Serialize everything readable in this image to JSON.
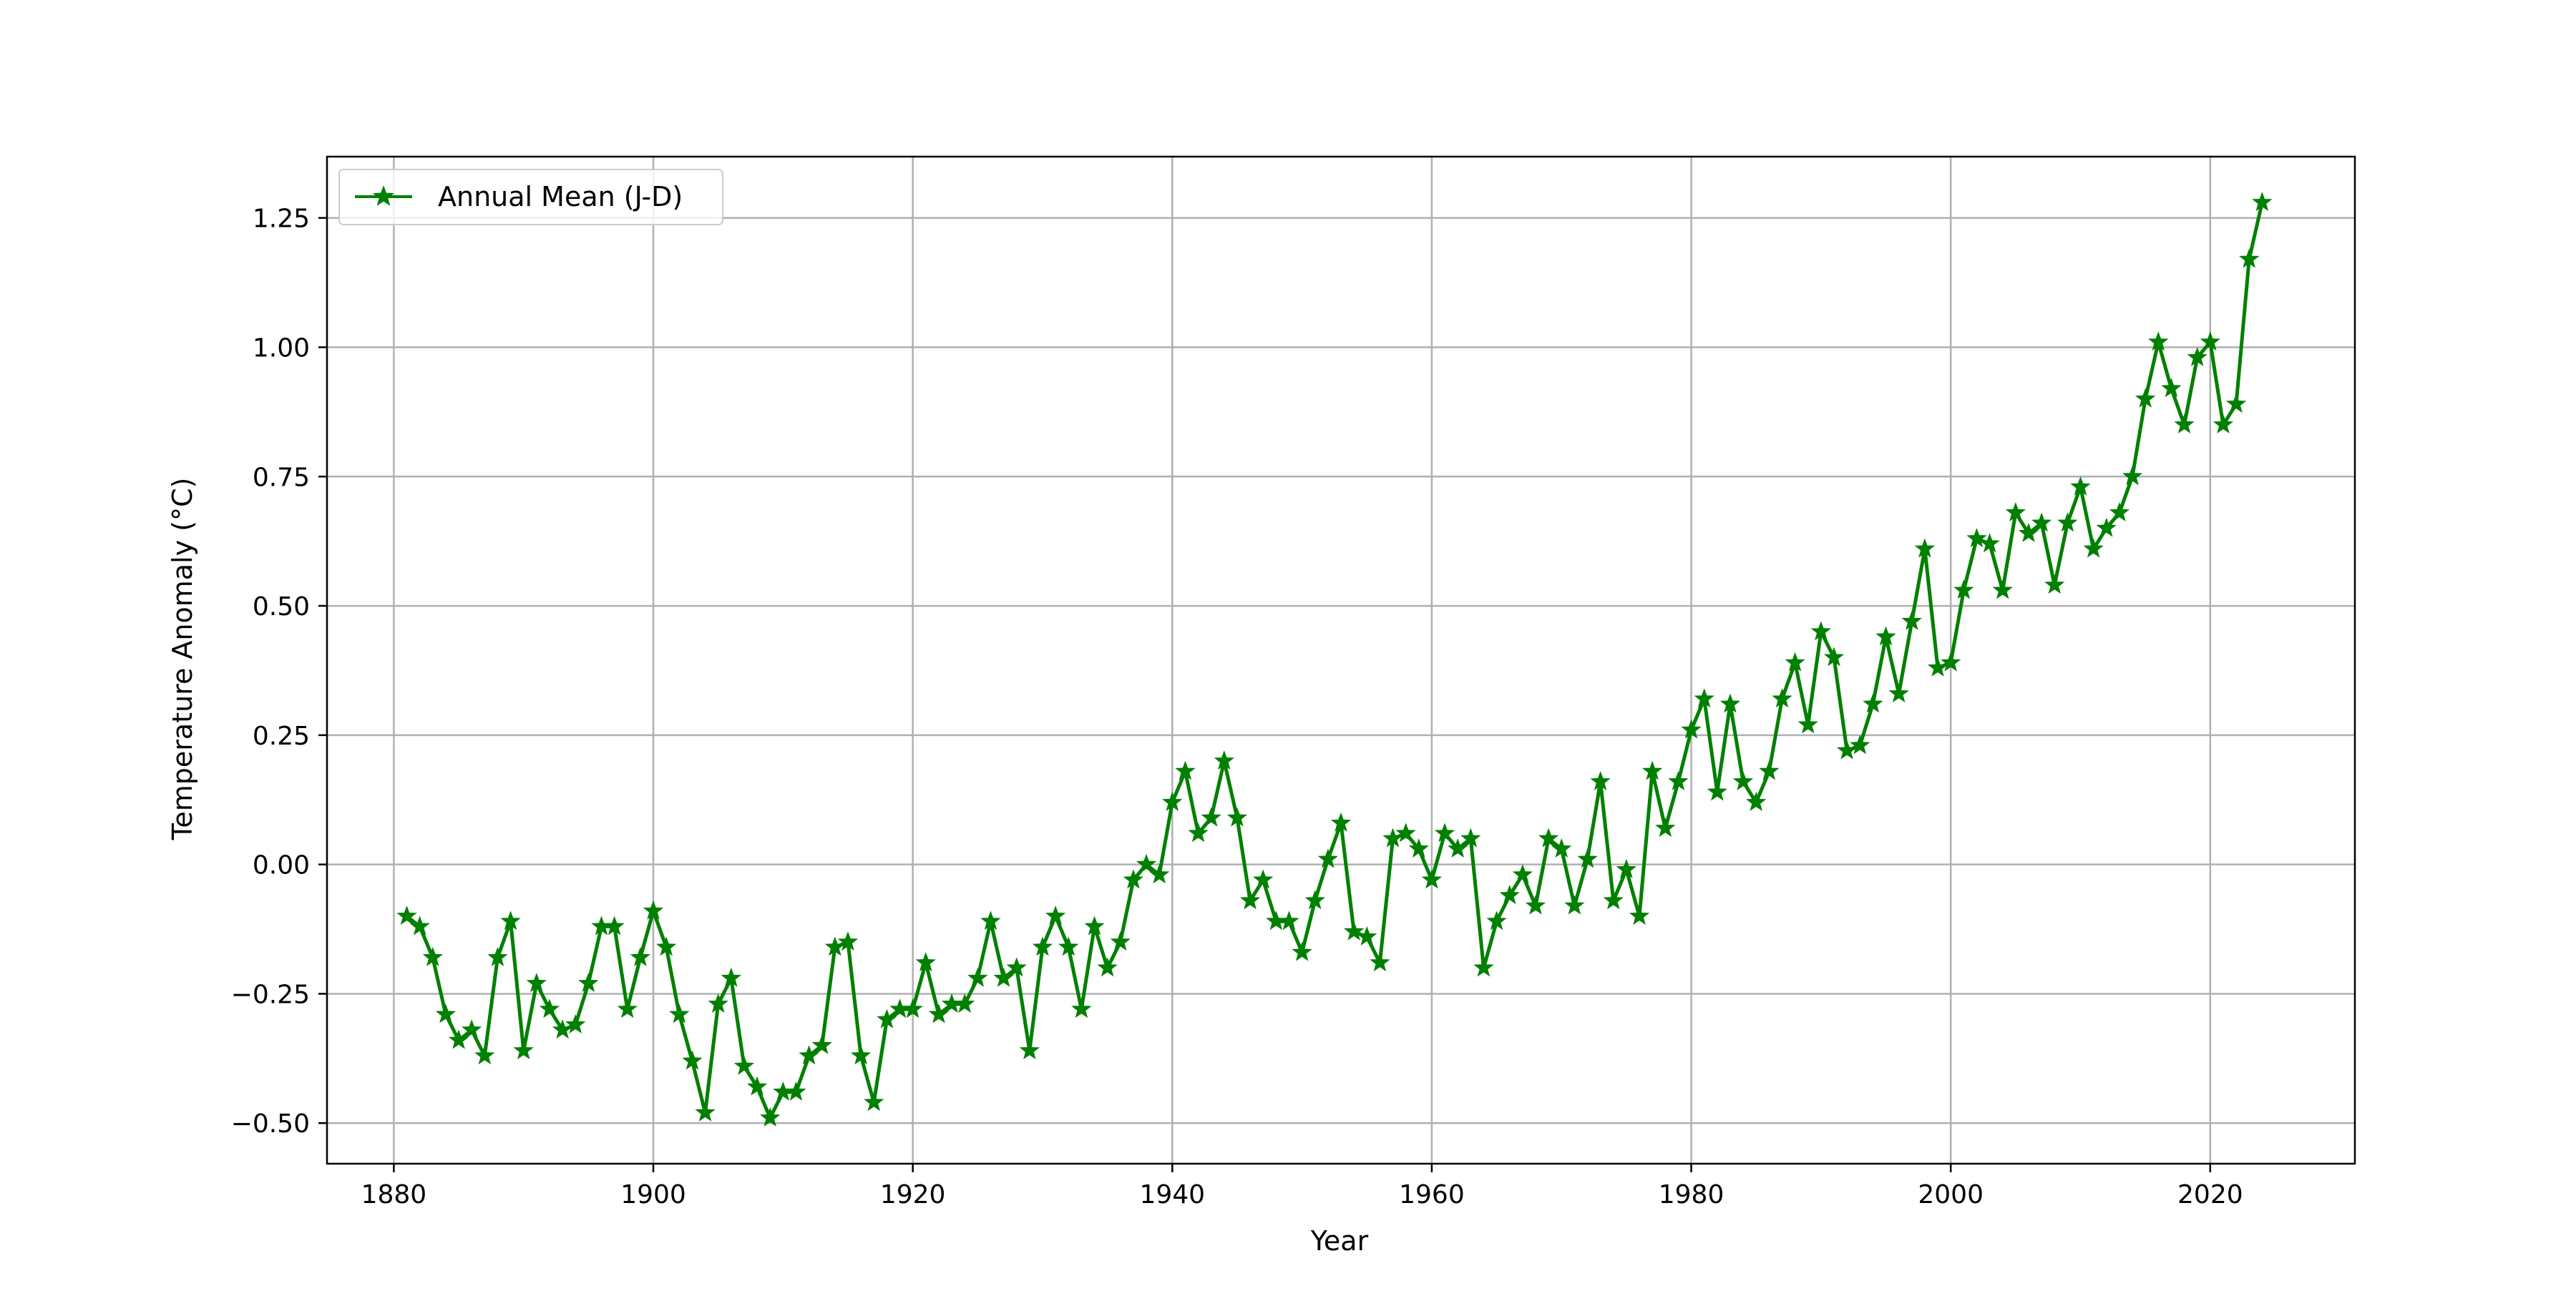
{
  "chart_data": {
    "type": "line",
    "xlabel": "Year",
    "ylabel": "Temperature Anomaly  (°C)",
    "xlim": [
      1874.85,
      2031.15
    ],
    "ylim": [
      -0.5785,
      1.3685
    ],
    "x_ticks": [
      1880,
      1900,
      1920,
      1940,
      1960,
      1980,
      2000,
      2020
    ],
    "y_ticks": [
      -0.5,
      -0.25,
      0.0,
      0.25,
      0.5,
      0.75,
      1.0,
      1.25
    ],
    "y_tick_labels": [
      "−0.50",
      "−0.25",
      "0.00",
      "0.25",
      "0.50",
      "0.75",
      "1.00",
      "1.25"
    ],
    "grid": true,
    "legend_position": "upper left",
    "series": [
      {
        "name": "Annual Mean (J-D)",
        "color": "#008000",
        "marker": "star",
        "x": [
          1881,
          1882,
          1883,
          1884,
          1885,
          1886,
          1887,
          1888,
          1889,
          1890,
          1891,
          1892,
          1893,
          1894,
          1895,
          1896,
          1897,
          1898,
          1899,
          1900,
          1901,
          1902,
          1903,
          1904,
          1905,
          1906,
          1907,
          1908,
          1909,
          1910,
          1911,
          1912,
          1913,
          1914,
          1915,
          1916,
          1917,
          1918,
          1919,
          1920,
          1921,
          1922,
          1923,
          1924,
          1925,
          1926,
          1927,
          1928,
          1929,
          1930,
          1931,
          1932,
          1933,
          1934,
          1935,
          1936,
          1937,
          1938,
          1939,
          1940,
          1941,
          1942,
          1943,
          1944,
          1945,
          1946,
          1947,
          1948,
          1949,
          1950,
          1951,
          1952,
          1953,
          1954,
          1955,
          1956,
          1957,
          1958,
          1959,
          1960,
          1961,
          1962,
          1963,
          1964,
          1965,
          1966,
          1967,
          1968,
          1969,
          1970,
          1971,
          1972,
          1973,
          1974,
          1975,
          1976,
          1977,
          1978,
          1979,
          1980,
          1981,
          1982,
          1983,
          1984,
          1985,
          1986,
          1987,
          1988,
          1989,
          1990,
          1991,
          1992,
          1993,
          1994,
          1995,
          1996,
          1997,
          1998,
          1999,
          2000,
          2001,
          2002,
          2003,
          2004,
          2005,
          2006,
          2007,
          2008,
          2009,
          2010,
          2011,
          2012,
          2013,
          2014,
          2015,
          2016,
          2017,
          2018,
          2019,
          2020,
          2021,
          2022,
          2023,
          2024
        ],
        "values": [
          -0.1,
          -0.12,
          -0.18,
          -0.29,
          -0.34,
          -0.32,
          -0.37,
          -0.18,
          -0.11,
          -0.36,
          -0.23,
          -0.28,
          -0.32,
          -0.31,
          -0.23,
          -0.12,
          -0.12,
          -0.28,
          -0.18,
          -0.09,
          -0.16,
          -0.29,
          -0.38,
          -0.48,
          -0.27,
          -0.22,
          -0.39,
          -0.43,
          -0.49,
          -0.44,
          -0.44,
          -0.37,
          -0.35,
          -0.16,
          -0.15,
          -0.37,
          -0.46,
          -0.3,
          -0.28,
          -0.28,
          -0.19,
          -0.29,
          -0.27,
          -0.27,
          -0.22,
          -0.11,
          -0.22,
          -0.2,
          -0.36,
          -0.16,
          -0.1,
          -0.16,
          -0.28,
          -0.12,
          -0.2,
          -0.15,
          -0.03,
          0.0,
          -0.02,
          0.12,
          0.18,
          0.06,
          0.09,
          0.2,
          0.09,
          -0.07,
          -0.03,
          -0.11,
          -0.11,
          -0.17,
          -0.07,
          0.01,
          0.08,
          -0.13,
          -0.14,
          -0.19,
          0.05,
          0.06,
          0.03,
          -0.03,
          0.06,
          0.03,
          0.05,
          -0.2,
          -0.11,
          -0.06,
          -0.02,
          -0.08,
          0.05,
          0.03,
          -0.08,
          0.01,
          0.16,
          -0.07,
          -0.01,
          -0.1,
          0.18,
          0.07,
          0.16,
          0.26,
          0.32,
          0.14,
          0.31,
          0.16,
          0.12,
          0.18,
          0.32,
          0.39,
          0.27,
          0.45,
          0.4,
          0.22,
          0.23,
          0.31,
          0.44,
          0.33,
          0.47,
          0.61,
          0.38,
          0.39,
          0.53,
          0.63,
          0.62,
          0.53,
          0.68,
          0.64,
          0.66,
          0.54,
          0.66,
          0.73,
          0.61,
          0.65,
          0.68,
          0.75,
          0.9,
          1.01,
          0.92,
          0.85,
          0.98,
          1.01,
          0.85,
          0.89,
          1.17,
          1.28
        ]
      }
    ]
  }
}
